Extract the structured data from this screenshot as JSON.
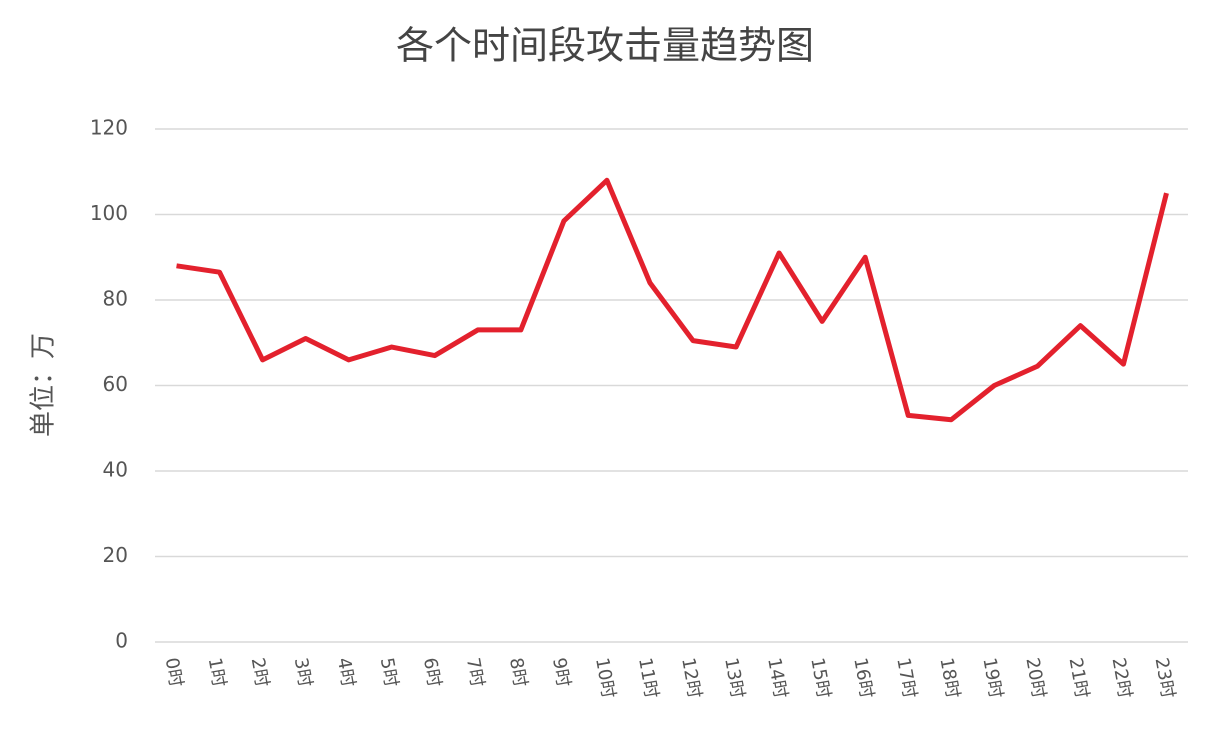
{
  "chart_data": {
    "type": "line",
    "title": "各个时间段攻击量趋势图",
    "y_label": "单位：万",
    "categories": [
      "0时",
      "1时",
      "2时",
      "3时",
      "4时",
      "5时",
      "6时",
      "7时",
      "8时",
      "9时",
      "10时",
      "11时",
      "12时",
      "13时",
      "14时",
      "15时",
      "16时",
      "17时",
      "18时",
      "19时",
      "20时",
      "21时",
      "22时",
      "23时"
    ],
    "series": [
      {
        "name": "攻击量",
        "color": "#e3212d",
        "values": [
          88,
          86.5,
          66,
          71,
          66,
          69,
          67,
          73,
          73,
          98.5,
          108,
          84,
          70.5,
          69,
          91,
          75,
          90,
          53,
          52,
          60,
          64.5,
          74,
          65,
          105
        ]
      }
    ],
    "ylim": [
      0,
      120
    ],
    "yticks": [
      0,
      20,
      40,
      60,
      80,
      100,
      120
    ],
    "grid": true
  }
}
